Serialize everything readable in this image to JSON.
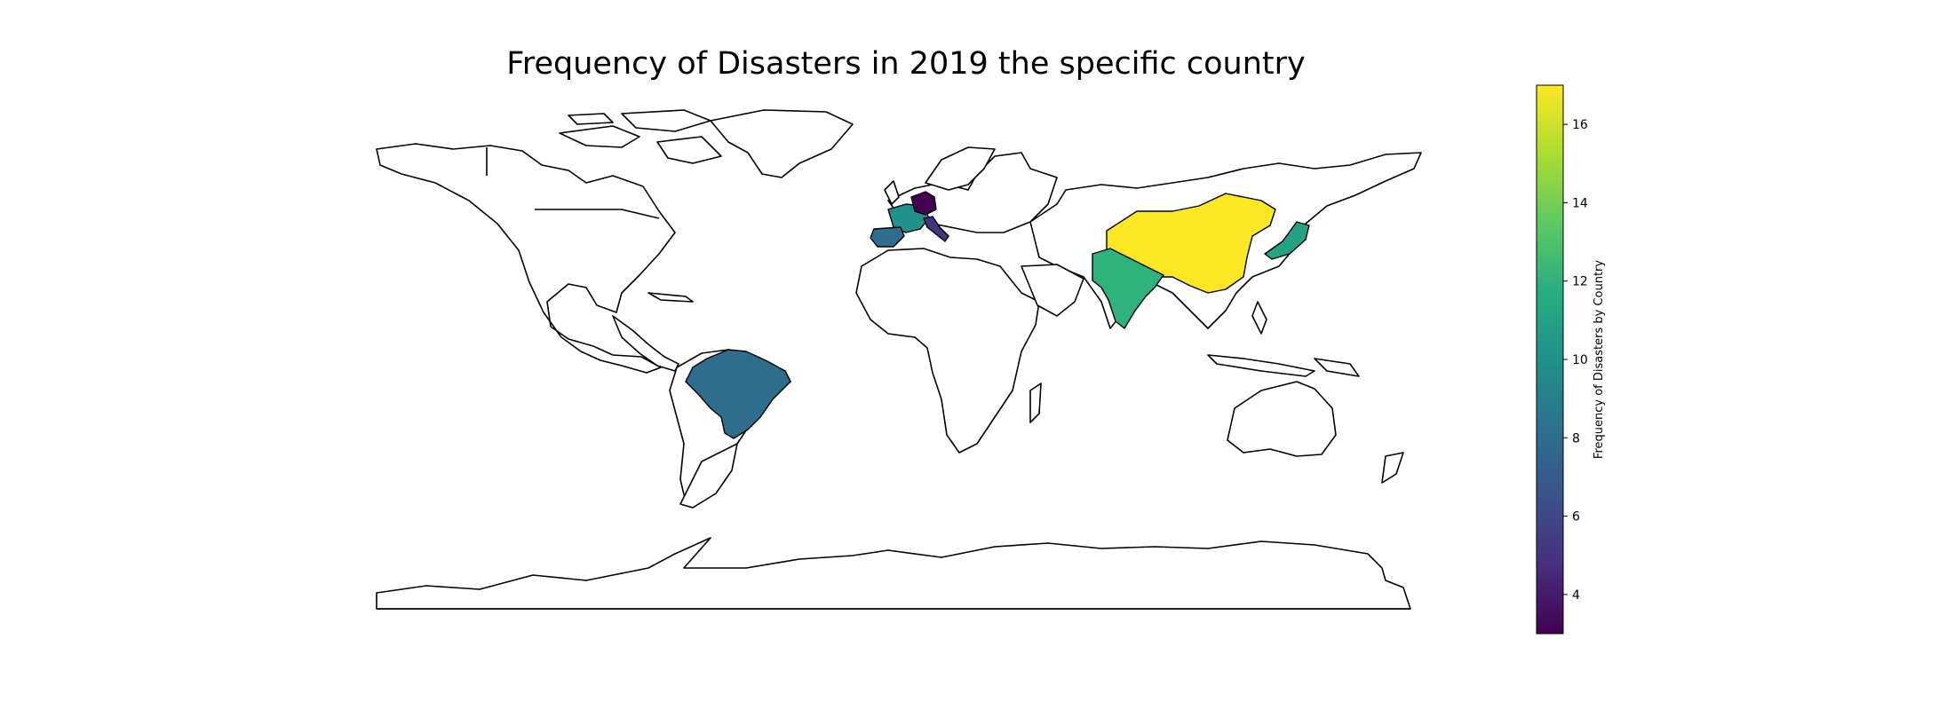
{
  "title": "Frequency of Disasters in 2019 the specific country",
  "colorbar": {
    "label": "Frequency of Disasters by Country",
    "min": 3,
    "max": 17,
    "ticks": [
      "4",
      "6",
      "8",
      "10",
      "12",
      "14",
      "16"
    ],
    "colormap": [
      "#440154",
      "#472f7d",
      "#3b528b",
      "#2c728e",
      "#21918c",
      "#28ae80",
      "#5ec962",
      "#addc30",
      "#fde725"
    ]
  },
  "chart_data": {
    "type": "choropleth",
    "title": "Frequency of Disasters in 2019 the specific country",
    "colorbar_label": "Frequency of Disasters by Country",
    "range": [
      3,
      17
    ],
    "countries": [
      {
        "name": "China",
        "value": 17
      },
      {
        "name": "India",
        "value": 12
      },
      {
        "name": "Japan",
        "value": 11
      },
      {
        "name": "France",
        "value": 10
      },
      {
        "name": "Brazil",
        "value": 8
      },
      {
        "name": "Spain",
        "value": 8
      },
      {
        "name": "Italy",
        "value": 5
      },
      {
        "name": "Germany",
        "value": 3
      }
    ],
    "legend_position": "right"
  }
}
